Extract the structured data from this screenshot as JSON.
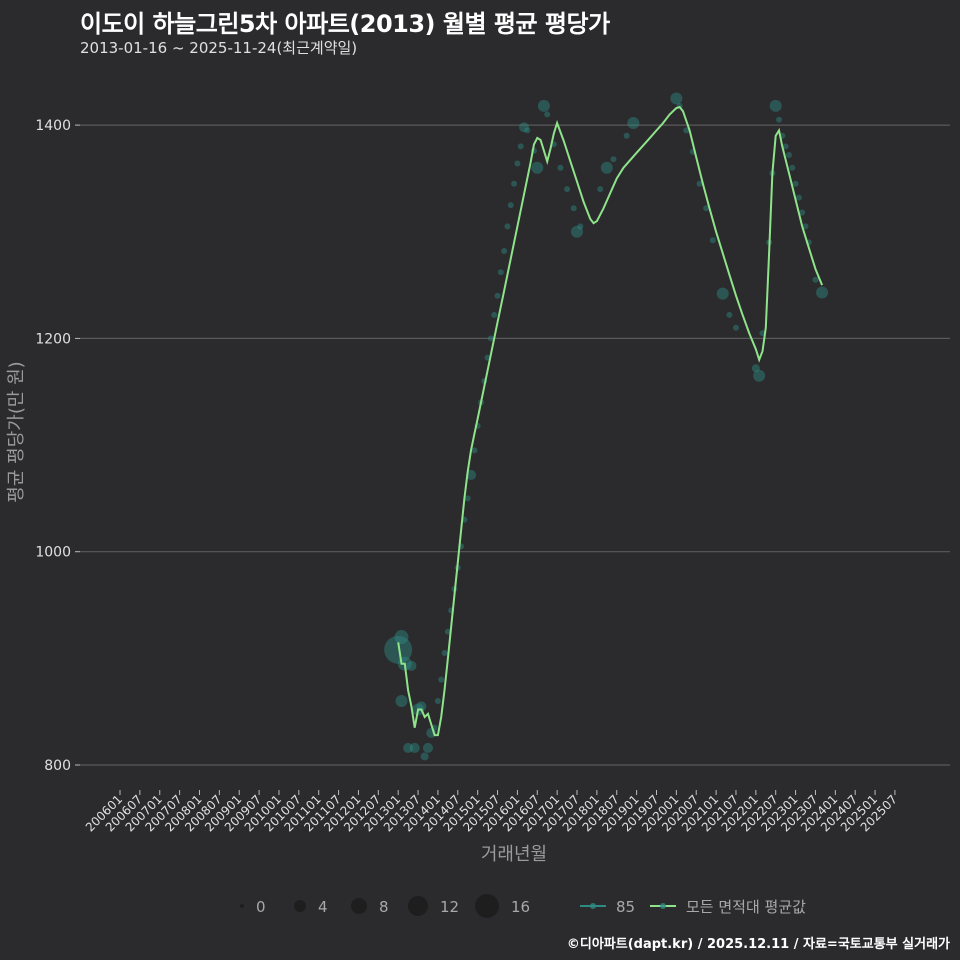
{
  "header": {
    "title": "이도이 하늘그린5차 아파트(2013) 월별 평균 평당가",
    "subtitle": "2013-01-16 ~ 2025-11-24(최근계약일)"
  },
  "caption": "©디아파트(dapt.kr) / 2025.12.11 / 자료=국토교통부 실거래가",
  "colors": {
    "background": "#2b2b2d",
    "grid": "#5a5a5a",
    "avg_line": "#8fe38a",
    "area_85": "#2e8b84",
    "legend_size_fill": "#1e1e1f"
  },
  "chart_data": {
    "type": "line",
    "title": "이도이 하늘그린5차 아파트(2013) 월별 평균 평당가",
    "subtitle": "2013-01-16 ~ 2025-11-24(최근계약일)",
    "xlabel": "거래년월",
    "ylabel": "평균 평당가(만 원)",
    "ylim": [
      780,
      1440
    ],
    "yticks": [
      800,
      1000,
      1200,
      1400
    ],
    "grid": true,
    "legend_position": "bottom",
    "x_tick_labels": [
      "200601",
      "200607",
      "200701",
      "200707",
      "200801",
      "200807",
      "200901",
      "200907",
      "201001",
      "201007",
      "201101",
      "201107",
      "201201",
      "201207",
      "201301",
      "201307",
      "201401",
      "201407",
      "201501",
      "201507",
      "201601",
      "201607",
      "201701",
      "201707",
      "201801",
      "201807",
      "201901",
      "201907",
      "202001",
      "202007",
      "202101",
      "202107",
      "202201",
      "202207",
      "202301",
      "202307",
      "202401",
      "202407",
      "202501",
      "202507"
    ],
    "size_legend": {
      "title": "",
      "values": [
        0,
        4,
        8,
        12,
        16
      ]
    },
    "series": [
      {
        "name": "모든 면적대 평균값",
        "kind": "line",
        "points": [
          [
            "201301",
            915
          ],
          [
            "201302",
            895
          ],
          [
            "201303",
            895
          ],
          [
            "201304",
            870
          ],
          [
            "201305",
            855
          ],
          [
            "201306",
            835
          ],
          [
            "201307",
            852
          ],
          [
            "201308",
            852
          ],
          [
            "201309",
            845
          ],
          [
            "201310",
            848
          ],
          [
            "201311",
            838
          ],
          [
            "201312",
            828
          ],
          [
            "201401",
            828
          ],
          [
            "201402",
            845
          ],
          [
            "201403",
            870
          ],
          [
            "201404",
            900
          ],
          [
            "201405",
            930
          ],
          [
            "201406",
            960
          ],
          [
            "201407",
            990
          ],
          [
            "201408",
            1020
          ],
          [
            "201409",
            1050
          ],
          [
            "201410",
            1075
          ],
          [
            "201411",
            1095
          ],
          [
            "201412",
            1110
          ],
          [
            "201501",
            1125
          ],
          [
            "201503",
            1155
          ],
          [
            "201505",
            1185
          ],
          [
            "201507",
            1215
          ],
          [
            "201509",
            1245
          ],
          [
            "201511",
            1275
          ],
          [
            "201601",
            1305
          ],
          [
            "201603",
            1335
          ],
          [
            "201605",
            1365
          ],
          [
            "201606",
            1382
          ],
          [
            "201607",
            1388
          ],
          [
            "201608",
            1386
          ],
          [
            "201609",
            1376
          ],
          [
            "201610",
            1366
          ],
          [
            "201611",
            1378
          ],
          [
            "201612",
            1392
          ],
          [
            "201701",
            1402
          ],
          [
            "201703",
            1385
          ],
          [
            "201705",
            1366
          ],
          [
            "201707",
            1347
          ],
          [
            "201709",
            1328
          ],
          [
            "201711",
            1312
          ],
          [
            "201712",
            1308
          ],
          [
            "201801",
            1310
          ],
          [
            "201803",
            1322
          ],
          [
            "201805",
            1336
          ],
          [
            "201807",
            1350
          ],
          [
            "201809",
            1360
          ],
          [
            "201811",
            1367
          ],
          [
            "201901",
            1374
          ],
          [
            "201903",
            1381
          ],
          [
            "201905",
            1388
          ],
          [
            "201907",
            1395
          ],
          [
            "201909",
            1402
          ],
          [
            "201911",
            1410
          ],
          [
            "202001",
            1416
          ],
          [
            "202002",
            1417
          ],
          [
            "202003",
            1413
          ],
          [
            "202005",
            1395
          ],
          [
            "202007",
            1370
          ],
          [
            "202009",
            1345
          ],
          [
            "202011",
            1322
          ],
          [
            "202101",
            1300
          ],
          [
            "202103",
            1280
          ],
          [
            "202105",
            1260
          ],
          [
            "202107",
            1240
          ],
          [
            "202109",
            1222
          ],
          [
            "202111",
            1205
          ],
          [
            "202201",
            1190
          ],
          [
            "202202",
            1180
          ],
          [
            "202203",
            1188
          ],
          [
            "202204",
            1210
          ],
          [
            "202205",
            1280
          ],
          [
            "202206",
            1355
          ],
          [
            "202207",
            1390
          ],
          [
            "202208",
            1395
          ],
          [
            "202209",
            1380
          ],
          [
            "202211",
            1355
          ],
          [
            "202301",
            1330
          ],
          [
            "202303",
            1305
          ],
          [
            "202305",
            1285
          ],
          [
            "202307",
            1265
          ],
          [
            "202309",
            1250
          ]
        ]
      },
      {
        "name": "85",
        "kind": "scatter",
        "points": [
          [
            "201301",
            908,
            14
          ],
          [
            "201302",
            920,
            7
          ],
          [
            "201303",
            895,
            7
          ],
          [
            "201302",
            860,
            6
          ],
          [
            "201305",
            893,
            5
          ],
          [
            "201304",
            816,
            5
          ],
          [
            "201306",
            816,
            5
          ],
          [
            "201307",
            852,
            6
          ],
          [
            "201308",
            855,
            5
          ],
          [
            "201309",
            808,
            4
          ],
          [
            "201310",
            816,
            5
          ],
          [
            "201311",
            830,
            5
          ],
          [
            "201312",
            835,
            3
          ],
          [
            "201401",
            860,
            3
          ],
          [
            "201402",
            880,
            3
          ],
          [
            "201403",
            905,
            3
          ],
          [
            "201404",
            925,
            3
          ],
          [
            "201405",
            945,
            3
          ],
          [
            "201406",
            965,
            3
          ],
          [
            "201407",
            985,
            3
          ],
          [
            "201408",
            1005,
            3
          ],
          [
            "201409",
            1030,
            3
          ],
          [
            "201410",
            1050,
            3
          ],
          [
            "201411",
            1072,
            5
          ],
          [
            "201412",
            1095,
            3
          ],
          [
            "201501",
            1118,
            3
          ],
          [
            "201502",
            1140,
            3
          ],
          [
            "201503",
            1160,
            3
          ],
          [
            "201504",
            1182,
            3
          ],
          [
            "201505",
            1200,
            3
          ],
          [
            "201506",
            1222,
            3
          ],
          [
            "201507",
            1240,
            3
          ],
          [
            "201508",
            1262,
            3
          ],
          [
            "201509",
            1282,
            3
          ],
          [
            "201510",
            1305,
            3
          ],
          [
            "201511",
            1325,
            3
          ],
          [
            "201512",
            1345,
            3
          ],
          [
            "201601",
            1364,
            3
          ],
          [
            "201602",
            1380,
            3
          ],
          [
            "201603",
            1398,
            5
          ],
          [
            "201604",
            1395,
            3
          ],
          [
            "201606",
            1376,
            3
          ],
          [
            "201607",
            1360,
            6
          ],
          [
            "201609",
            1418,
            6
          ],
          [
            "201610",
            1410,
            3
          ],
          [
            "201612",
            1382,
            3
          ],
          [
            "201702",
            1360,
            3
          ],
          [
            "201704",
            1340,
            3
          ],
          [
            "201706",
            1322,
            3
          ],
          [
            "201707",
            1300,
            6
          ],
          [
            "201708",
            1305,
            3
          ],
          [
            "201802",
            1340,
            3
          ],
          [
            "201804",
            1360,
            6
          ],
          [
            "201806",
            1368,
            3
          ],
          [
            "201810",
            1390,
            3
          ],
          [
            "201812",
            1402,
            6
          ],
          [
            "202001",
            1425,
            6
          ],
          [
            "202002",
            1418,
            3
          ],
          [
            "202004",
            1395,
            3
          ],
          [
            "202006",
            1375,
            3
          ],
          [
            "202008",
            1345,
            3
          ],
          [
            "202010",
            1322,
            3
          ],
          [
            "202012",
            1292,
            3
          ],
          [
            "202103",
            1242,
            6
          ],
          [
            "202105",
            1222,
            3
          ],
          [
            "202107",
            1210,
            3
          ],
          [
            "202201",
            1172,
            4
          ],
          [
            "202202",
            1165,
            6
          ],
          [
            "202203",
            1205,
            3
          ],
          [
            "202205",
            1290,
            3
          ],
          [
            "202206",
            1355,
            3
          ],
          [
            "202207",
            1418,
            6
          ],
          [
            "202208",
            1405,
            3
          ],
          [
            "202209",
            1390,
            3
          ],
          [
            "202210",
            1380,
            3
          ],
          [
            "202211",
            1372,
            3
          ],
          [
            "202212",
            1360,
            3
          ],
          [
            "202301",
            1345,
            3
          ],
          [
            "202302",
            1332,
            3
          ],
          [
            "202303",
            1318,
            3
          ],
          [
            "202304",
            1305,
            3
          ],
          [
            "202305",
            1290,
            3
          ],
          [
            "202307",
            1255,
            3
          ],
          [
            "202309",
            1243,
            6
          ]
        ]
      }
    ]
  },
  "legend": {
    "sizes": [
      {
        "label": "0",
        "r": 2
      },
      {
        "label": "4",
        "r": 6
      },
      {
        "label": "8",
        "r": 8
      },
      {
        "label": "12",
        "r": 10
      },
      {
        "label": "16",
        "r": 12
      }
    ],
    "series": [
      {
        "label": "85",
        "color": "#2e8b84"
      },
      {
        "label": "모든 면적대 평균값",
        "color": "#8fe38a"
      }
    ]
  },
  "axes": {
    "ylabel": "평균 평당가(만 원)",
    "xlabel": "거래년월"
  }
}
